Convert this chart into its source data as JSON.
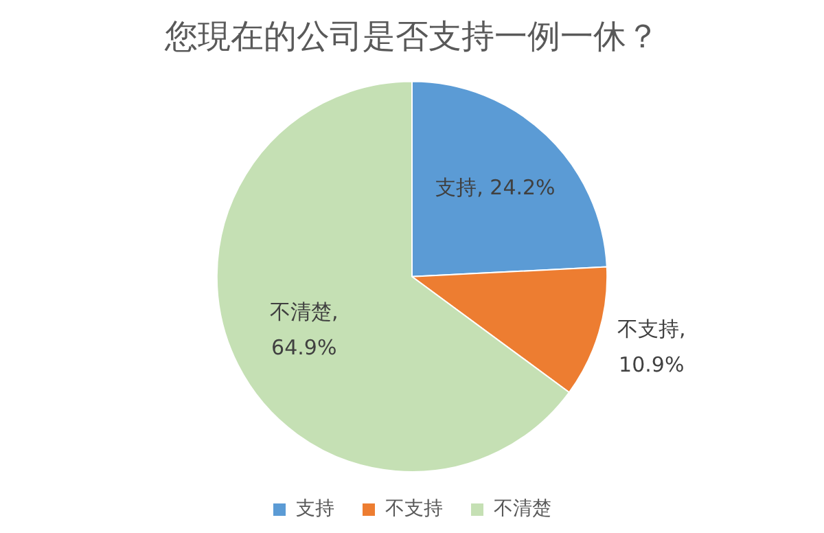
{
  "chart_data": {
    "type": "pie",
    "title": "您現在的公司是否支持一例一休？",
    "categories": [
      "支持",
      "不支持",
      "不清楚"
    ],
    "values": [
      24.2,
      10.9,
      64.9
    ],
    "colors": [
      "#5b9bd5",
      "#ed7d31",
      "#c5e0b4"
    ],
    "value_labels": [
      "支持, 24.2%",
      "不支持, 10.9%",
      "不清楚, 64.9%"
    ],
    "legend": "bottom"
  }
}
